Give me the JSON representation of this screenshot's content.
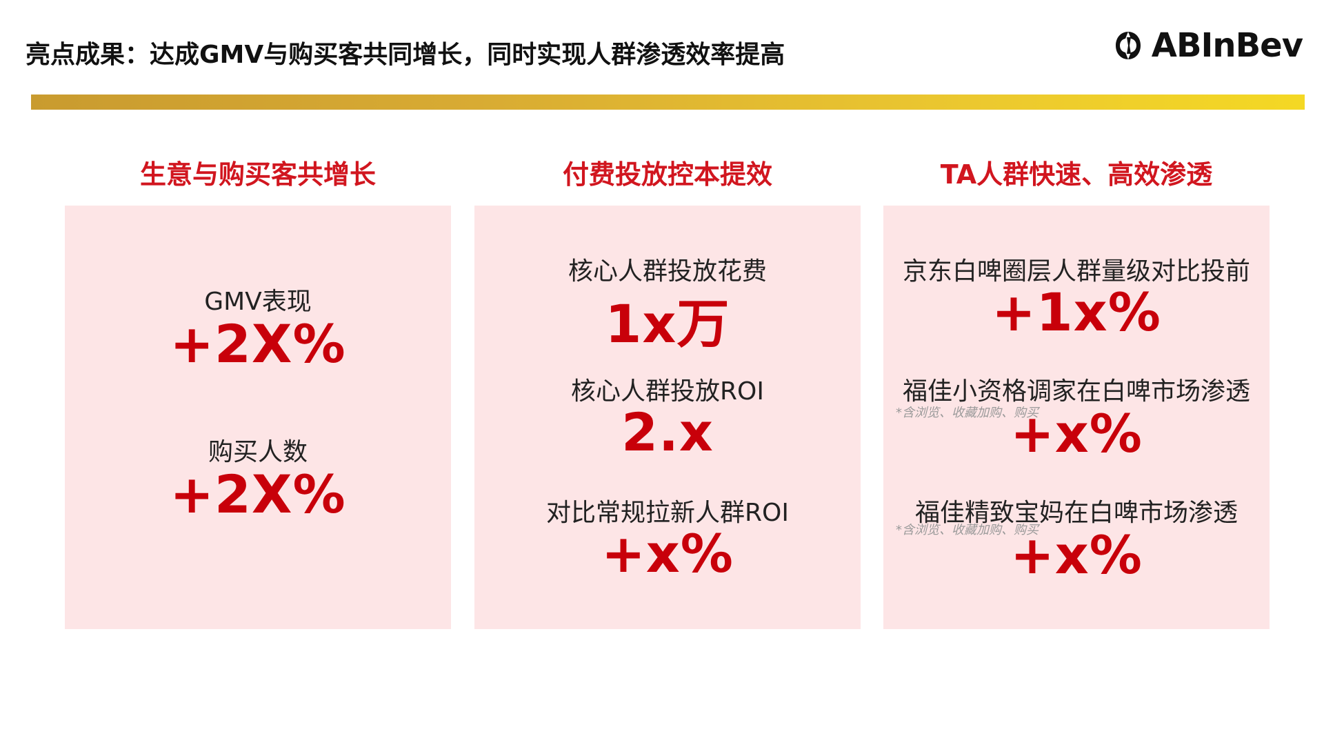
{
  "header": {
    "title": "亮点成果：达成GMV与购买客共同增长，同时实现人群渗透效率提高",
    "logo_text": "ABInBev",
    "logo_icon": "abinbev-logo-mark-icon"
  },
  "colors": {
    "accent_red": "#c8000a",
    "heading_red": "#d1161f",
    "panel_bg": "#fde5e6",
    "gold_start": "#c99b2f",
    "gold_end": "#f4d824"
  },
  "columns": [
    {
      "heading": "生意与购买客共增长",
      "metrics": [
        {
          "label": "GMV表现",
          "value": "+2X%"
        },
        {
          "label": "购买人数",
          "value": "+2X%"
        }
      ]
    },
    {
      "heading": "付费投放控本提效",
      "metrics": [
        {
          "label": "核心人群投放花费",
          "value": "1x万"
        },
        {
          "label": "核心人群投放ROI",
          "value": "2.x"
        },
        {
          "label": "对比常规拉新人群ROI",
          "value": "+x%"
        }
      ]
    },
    {
      "heading": "TA人群快速、高效渗透",
      "metrics": [
        {
          "label": "京东白啤圈层人群量级对比投前",
          "value": "+1x%"
        },
        {
          "label": "福佳小资格调家在白啤市场渗透",
          "note": "*含浏览、收藏加购、购买",
          "value": "+x%"
        },
        {
          "label": "福佳精致宝妈在白啤市场渗透",
          "note": "*含浏览、收藏加购、购买",
          "value": "+x%"
        }
      ]
    }
  ]
}
